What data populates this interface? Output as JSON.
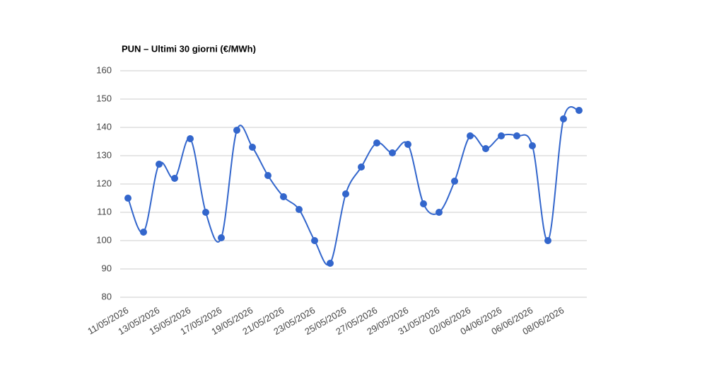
{
  "chart_data": {
    "type": "line",
    "title": "PUN – Ultimi 30 giorni (€/MWh)",
    "categories": [
      "11/05/2026",
      null,
      "13/05/2026",
      null,
      "15/05/2026",
      null,
      "17/05/2026",
      null,
      "19/05/2026",
      null,
      "21/05/2026",
      null,
      "23/05/2026",
      null,
      "25/05/2026",
      null,
      "27/05/2026",
      null,
      "29/05/2026",
      null,
      "31/05/2026",
      null,
      "02/06/2026",
      null,
      "04/06/2026",
      null,
      "06/06/2026",
      null,
      "08/06/2026",
      null
    ],
    "series": [
      {
        "color": "#3366cc",
        "values": [
          115,
          103,
          127,
          122,
          136,
          110,
          101,
          139,
          133,
          123,
          115.5,
          111,
          100,
          92,
          116.5,
          126,
          134.5,
          131,
          134,
          113,
          110,
          121,
          137,
          132.5,
          137,
          137,
          133.5,
          100,
          143,
          146
        ]
      }
    ],
    "ylim": [
      80,
      160
    ],
    "yticks": [
      80,
      90,
      100,
      110,
      120,
      130,
      140,
      150,
      160
    ],
    "grid": true,
    "smooth": true
  }
}
